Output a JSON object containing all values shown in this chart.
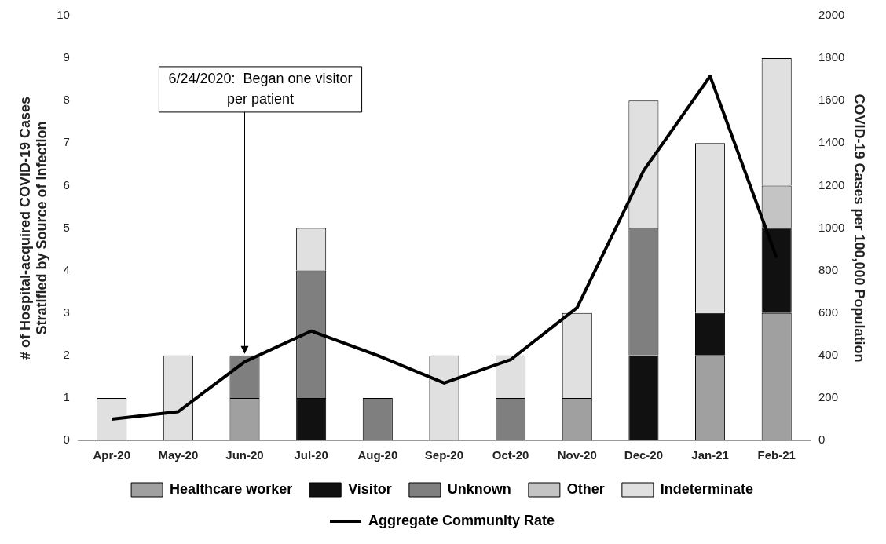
{
  "chart_data": {
    "type": "bar",
    "stacked": true,
    "ylabel": "# of Hospital-acquired COVID-19 Cases\nStratified by Source of Infection",
    "y2label": "COVID-19 Cases per 100,000 Population",
    "categories": [
      "Apr-20",
      "May-20",
      "Jun-20",
      "Jul-20",
      "Aug-20",
      "Sep-20",
      "Oct-20",
      "Nov-20",
      "Dec-20",
      "Jan-21",
      "Feb-21"
    ],
    "series": [
      {
        "name": "Healthcare worker",
        "color": "#a0a0a0",
        "values": [
          0,
          0,
          1,
          0,
          0,
          0,
          0,
          1,
          0,
          2,
          3
        ]
      },
      {
        "name": "Visitor",
        "color": "#111111",
        "values": [
          0,
          0,
          0,
          1,
          0,
          0,
          0,
          0,
          2,
          1,
          2
        ]
      },
      {
        "name": "Unknown",
        "color": "#7f7f7f",
        "values": [
          0,
          0,
          1,
          3,
          1,
          0,
          1,
          0,
          3,
          0,
          0
        ]
      },
      {
        "name": "Other",
        "color": "#c4c4c4",
        "values": [
          0,
          0,
          0,
          0,
          0,
          0,
          0,
          0,
          0,
          0,
          1
        ]
      },
      {
        "name": "Indeterminate",
        "color": "#e0e0e0",
        "values": [
          1,
          2,
          0,
          1,
          0,
          2,
          1,
          2,
          3,
          4,
          3
        ]
      },
      {
        "name": "Aggregate Community Rate",
        "type": "line",
        "axis": "y2",
        "color": "#000000",
        "values": [
          100,
          135,
          370,
          515,
          400,
          270,
          380,
          625,
          1270,
          1715,
          860
        ]
      }
    ],
    "ylim": [
      0,
      10
    ],
    "yticks": [
      0,
      1,
      2,
      3,
      4,
      5,
      6,
      7,
      8,
      9,
      10
    ],
    "y2lim": [
      0,
      2000
    ],
    "y2ticks": [
      0,
      200,
      400,
      600,
      800,
      1000,
      1200,
      1400,
      1600,
      1800,
      2000
    ],
    "annotations": [
      {
        "text": "6/24/2020:  Began one visitor per patient",
        "x": "Jun-20",
        "y": 2
      }
    ],
    "grid": false,
    "legend": "bottom",
    "marker": "none",
    "line_style": "solid"
  }
}
